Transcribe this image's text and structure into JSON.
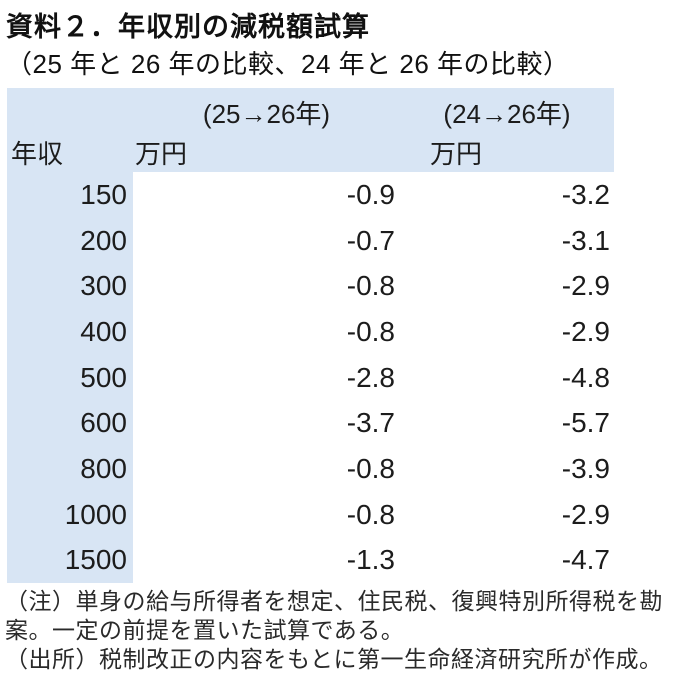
{
  "header": {
    "title": "資料２．年収別の減税額試算",
    "subtitle": "（25 年と 26 年の比較、24 年と 26 年の比較）"
  },
  "table": {
    "header_bg_color": "#d8e5f4",
    "col_group_1": "(25→26年)",
    "col_group_2": "(24→26年)",
    "income_header": "年収",
    "unit_label_1": "万円",
    "unit_label_2": "万円",
    "rows": [
      {
        "income": "150",
        "change_25_26": "-0.9",
        "change_24_26": "-3.2"
      },
      {
        "income": "200",
        "change_25_26": "-0.7",
        "change_24_26": "-3.1"
      },
      {
        "income": "300",
        "change_25_26": "-0.8",
        "change_24_26": "-2.9"
      },
      {
        "income": "400",
        "change_25_26": "-0.8",
        "change_24_26": "-2.9"
      },
      {
        "income": "500",
        "change_25_26": "-2.8",
        "change_24_26": "-4.8"
      },
      {
        "income": "600",
        "change_25_26": "-3.7",
        "change_24_26": "-5.7"
      },
      {
        "income": "800",
        "change_25_26": "-0.8",
        "change_24_26": "-3.9"
      },
      {
        "income": "1000",
        "change_25_26": "-0.8",
        "change_24_26": "-2.9"
      },
      {
        "income": "1500",
        "change_25_26": "-1.3",
        "change_24_26": "-4.7"
      }
    ]
  },
  "notes": {
    "note_line_1": "（注）単身の給与所得者を想定、住民税、復興特別所得税を勘",
    "note_line_2": "案。一定の前提を置いた試算である。",
    "source_line": "（出所）税制改正の内容をもとに第一生命経済研究所が作成。"
  }
}
